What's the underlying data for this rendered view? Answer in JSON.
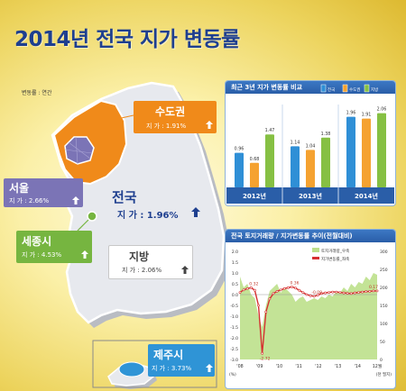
{
  "title": "2014년 전국 지가 변동률",
  "unit_note": "변동률 : 연간",
  "regions": {
    "metro": {
      "name": "수도권",
      "value_label": "지  가 : 1.91%"
    },
    "seoul": {
      "name": "서울",
      "value_label": "지  가 : 2.66%"
    },
    "national": {
      "name": "전국",
      "value_label": "지  가 : 1.96%"
    },
    "sejong": {
      "name": "세종시",
      "value_label": "지  가 : 4.53%"
    },
    "local": {
      "name": "지방",
      "value_label": "지  가 : 2.06%"
    },
    "jeju": {
      "name": "제주시",
      "value_label": "지  가 : 3.73%"
    }
  },
  "colors": {
    "metro": "#f08a1a",
    "seoul": "#7b74b6",
    "sejong": "#76b540",
    "jeju": "#2f94d6",
    "local": "#ffffff",
    "title": "#1e3f8f"
  },
  "chart_data": [
    {
      "type": "bar",
      "title": "최근 3년 지가 변동률 비교",
      "categories": [
        "2012년",
        "2013년",
        "2014년"
      ],
      "series": [
        {
          "name": "전국",
          "color": "#2f8fd6",
          "values": [
            0.96,
            1.14,
            1.96
          ]
        },
        {
          "name": "수도권",
          "color": "#f5a230",
          "values": [
            0.68,
            1.04,
            1.91
          ]
        },
        {
          "name": "지방",
          "color": "#86c043",
          "values": [
            1.47,
            1.38,
            2.06
          ]
        }
      ],
      "data_labels": [
        [
          "0.96",
          "0.68",
          "1.47"
        ],
        [
          "1.14",
          "1.04",
          "1.38"
        ],
        [
          "1.96",
          "1.91",
          "2.06"
        ]
      ],
      "ylim": [
        0,
        2.3
      ]
    },
    {
      "type": "line",
      "title": "전국 토지거래량 / 지가변동률 추이(전월대비)",
      "legend": [
        "토지거래량_우축",
        "지가변동률_좌축"
      ],
      "x_ticks": [
        "'08",
        "'09",
        "'10",
        "'11",
        "'12",
        "'13",
        "'14",
        "12월"
      ],
      "x_unit": "(천 필지)",
      "y_left_unit": "(%)",
      "y_left_ticks": [
        "2.0",
        "1.5",
        "1.0",
        "0.5",
        "0.0",
        "-0.5",
        "-1.0",
        "-1.5",
        "-2.0",
        "-2.5",
        "-3.0"
      ],
      "y_right_ticks": [
        "300",
        "250",
        "200",
        "150",
        "100",
        "50",
        "0"
      ],
      "ylim_left": [
        -3.0,
        2.0
      ],
      "ylim_right": [
        0,
        300
      ],
      "annotations": [
        "0.32",
        "-2.72",
        "0.36",
        "-0.08",
        "0.17"
      ],
      "rate": [
        0.1,
        0.22,
        0.28,
        0.32,
        0.2,
        -0.5,
        -2.72,
        -0.8,
        -0.2,
        0.05,
        0.15,
        0.22,
        0.28,
        0.32,
        0.36,
        0.3,
        0.2,
        0.1,
        0.0,
        -0.05,
        -0.08,
        -0.02,
        0.05,
        0.08,
        0.1,
        0.12,
        0.12,
        0.1,
        0.08,
        0.06,
        0.05,
        0.08,
        0.1,
        0.12,
        0.14,
        0.15,
        0.17,
        0.17
      ],
      "volume": [
        230,
        200,
        210,
        180,
        170,
        120,
        90,
        150,
        190,
        200,
        210,
        185,
        200,
        190,
        180,
        160,
        170,
        175,
        160,
        165,
        170,
        165,
        175,
        170,
        180,
        175,
        190,
        185,
        200,
        190,
        210,
        200,
        215,
        210,
        230,
        220,
        240,
        235
      ]
    }
  ]
}
